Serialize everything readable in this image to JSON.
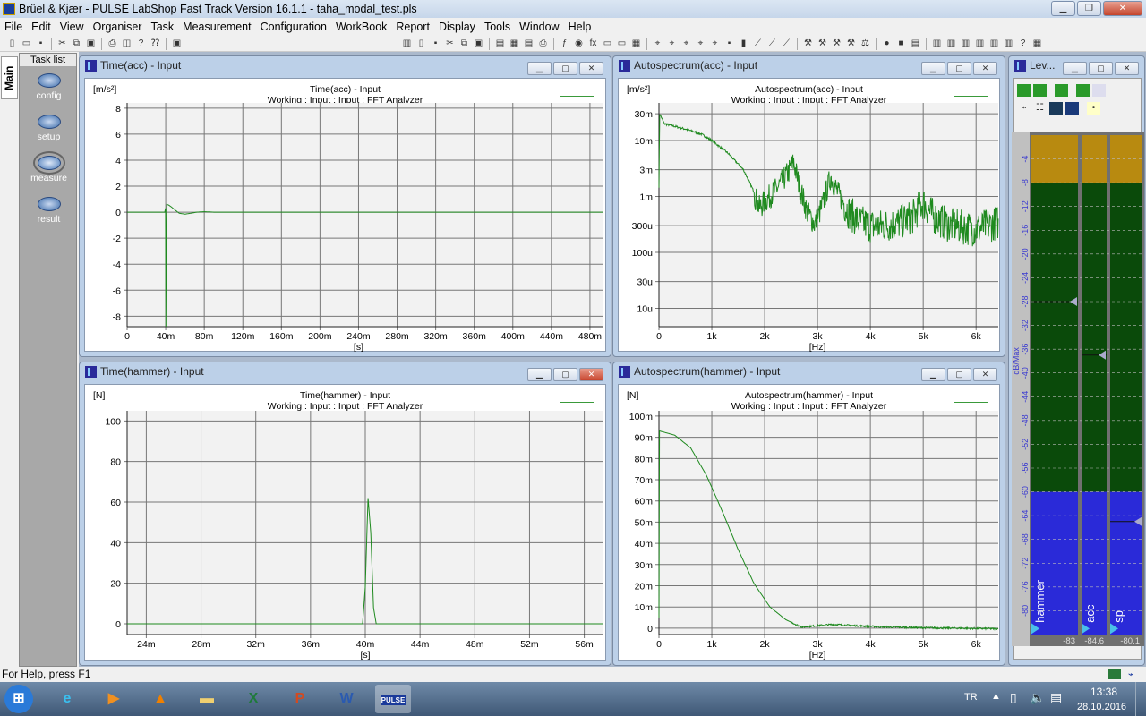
{
  "window": {
    "title": "Brüel & Kjær - PULSE LabShop Fast Track Version 16.1.1 - taha_modal_test.pls",
    "controls": [
      "minimize",
      "restore",
      "close"
    ]
  },
  "menu": [
    "File",
    "Edit",
    "View",
    "Organiser",
    "Task",
    "Measurement",
    "Configuration",
    "WorkBook",
    "Report",
    "Display",
    "Tools",
    "Window",
    "Help"
  ],
  "toolbar": [
    "new-icon",
    "open-icon",
    "save-icon",
    "|",
    "cut-icon",
    "copy-icon",
    "paste-icon",
    "|",
    "print-icon",
    "print-preview-icon",
    "help-icon",
    "context-help-icon",
    "|",
    "pulse-icon",
    "gap",
    "book-icon",
    "page-icon",
    "save-icon",
    "cut-icon",
    "copy-icon",
    "paste-icon",
    "|",
    "doc-icon",
    "grid-icon",
    "chart-icon",
    "print-icon",
    "|",
    "function-icon",
    "globe-icon",
    "fx-icon",
    "display-icon",
    "meter-icon",
    "table-icon",
    "|",
    "cursor-icon",
    "cursor-icon",
    "cursor-icon",
    "cursor-icon",
    "cursor-icon",
    "save-icon",
    "bar-icon",
    "plot-icon",
    "plot-icon",
    "plot-icon",
    "|",
    "tool-icon",
    "tool-icon",
    "tool-icon",
    "tool-icon",
    "scale-icon",
    "|",
    "record-icon",
    "stop-icon",
    "pdf-icon",
    "|",
    "layout-icon",
    "layout-icon",
    "layout-icon",
    "layout-icon",
    "layout-icon",
    "layout-icon",
    "help-icon",
    "grid-icon"
  ],
  "sidebar": {
    "tab": "Main",
    "task_list_label": "Task list",
    "tasks": [
      {
        "label": "config"
      },
      {
        "label": "setup"
      },
      {
        "label": "measure",
        "selected": true
      },
      {
        "label": "result"
      }
    ]
  },
  "status": "For Help, press F1",
  "panels": {
    "time_acc": {
      "caption": "Time(acc) - Input",
      "unit": "[m/s²]",
      "title": "Time(acc) - Input",
      "subtitle": "Working : Input : Input : FFT Analyzer",
      "xunit": "[s]"
    },
    "spec_acc": {
      "caption": "Autospectrum(acc) - Input",
      "unit": "[m/s²]",
      "title": "Autospectrum(acc) - Input",
      "subtitle": "Working : Input : Input : FFT Analyzer",
      "xunit": "[Hz]"
    },
    "time_hammer": {
      "caption": "Time(hammer) - Input",
      "unit": "[N]",
      "title": "Time(hammer) - Input",
      "subtitle": "Working : Input : Input : FFT Analyzer",
      "xunit": "[s]"
    },
    "spec_hammer": {
      "caption": "Autospectrum(hammer) - Input",
      "unit": "[N]",
      "title": "Autospectrum(hammer) - Input",
      "subtitle": "Working : Input : Input : FFT Analyzer",
      "xunit": "[Hz]"
    }
  },
  "chart_data": [
    {
      "id": "time_acc",
      "type": "line",
      "xlim": [
        0,
        0.494
      ],
      "ylim": [
        -8.8,
        8.4
      ],
      "yscale": "linear",
      "grid": true,
      "color": "#1f8a1f",
      "xticks": [
        [
          0,
          "0"
        ],
        [
          0.04,
          "40m"
        ],
        [
          0.08,
          "80m"
        ],
        [
          0.12,
          "120m"
        ],
        [
          0.16,
          "160m"
        ],
        [
          0.2,
          "200m"
        ],
        [
          0.24,
          "240m"
        ],
        [
          0.28,
          "280m"
        ],
        [
          0.32,
          "320m"
        ],
        [
          0.36,
          "360m"
        ],
        [
          0.4,
          "400m"
        ],
        [
          0.44,
          "440m"
        ],
        [
          0.48,
          "480m"
        ]
      ],
      "yticks": [
        [
          8,
          "8"
        ],
        [
          6,
          "6"
        ],
        [
          4,
          "4"
        ],
        [
          2,
          "2"
        ],
        [
          0,
          "0"
        ],
        [
          -2,
          "-2"
        ],
        [
          -4,
          "-4"
        ],
        [
          -6,
          "-6"
        ],
        [
          -8,
          "-8"
        ]
      ],
      "points": [
        [
          0,
          0
        ],
        [
          0.039,
          0
        ],
        [
          0.0398,
          0.3
        ],
        [
          0.0402,
          -8.8
        ],
        [
          0.0406,
          -2.8
        ],
        [
          0.041,
          0.6
        ],
        [
          0.043,
          0.55
        ],
        [
          0.046,
          0.4
        ],
        [
          0.05,
          0.15
        ],
        [
          0.054,
          -0.08
        ],
        [
          0.06,
          -0.15
        ],
        [
          0.066,
          -0.08
        ],
        [
          0.072,
          0
        ],
        [
          0.08,
          0.04
        ],
        [
          0.09,
          0
        ],
        [
          0.494,
          0
        ]
      ]
    },
    {
      "id": "spec_acc",
      "type": "line",
      "xlim": [
        0,
        6420
      ],
      "ylim": [
        4.7e-06,
        0.047
      ],
      "yscale": "log",
      "grid": true,
      "color": "#1f8a1f",
      "xticks": [
        [
          0,
          "0"
        ],
        [
          1000,
          "1k"
        ],
        [
          2000,
          "2k"
        ],
        [
          3000,
          "3k"
        ],
        [
          4000,
          "4k"
        ],
        [
          5000,
          "5k"
        ],
        [
          6000,
          "6k"
        ]
      ],
      "yticks": [
        [
          0.03,
          "30m"
        ],
        [
          0.01,
          "10m"
        ],
        [
          0.003,
          "3m"
        ],
        [
          0.001,
          "1m"
        ],
        [
          0.0003,
          "300u"
        ],
        [
          0.0001,
          "100u"
        ],
        [
          3e-05,
          "30u"
        ],
        [
          1e-05,
          "10u"
        ]
      ],
      "points": [
        [
          0,
          0.0015
        ],
        [
          15,
          0.03
        ],
        [
          100,
          0.02
        ],
        [
          500,
          0.016
        ],
        [
          800,
          0.013
        ],
        [
          1000,
          0.01
        ],
        [
          1300,
          0.006
        ],
        [
          1600,
          0.003
        ],
        [
          1800,
          0.0012
        ],
        [
          1900,
          0.0007
        ],
        [
          2050,
          0.001
        ],
        [
          2250,
          0.0016
        ],
        [
          2450,
          0.003
        ],
        [
          2550,
          0.0045
        ],
        [
          2650,
          0.0018
        ],
        [
          2800,
          0.0006
        ],
        [
          2950,
          0.00035
        ],
        [
          3100,
          0.0008
        ],
        [
          3250,
          0.0025
        ],
        [
          3400,
          0.0012
        ],
        [
          3600,
          0.0006
        ],
        [
          3800,
          0.0004
        ],
        [
          4100,
          0.00033
        ],
        [
          4500,
          0.00038
        ],
        [
          4800,
          0.0005
        ],
        [
          5000,
          0.0009
        ],
        [
          5200,
          0.0005
        ],
        [
          5500,
          0.00035
        ],
        [
          6000,
          0.0003
        ],
        [
          6420,
          0.0004
        ]
      ]
    },
    {
      "id": "time_hammer",
      "type": "line",
      "xlim": [
        0.0226,
        0.0574
      ],
      "ylim": [
        -5.3,
        105
      ],
      "yscale": "linear",
      "grid": true,
      "color": "#1f8a1f",
      "xticks": [
        [
          0.024,
          "24m"
        ],
        [
          0.028,
          "28m"
        ],
        [
          0.032,
          "32m"
        ],
        [
          0.036,
          "36m"
        ],
        [
          0.04,
          "40m"
        ],
        [
          0.044,
          "44m"
        ],
        [
          0.048,
          "48m"
        ],
        [
          0.052,
          "52m"
        ],
        [
          0.056,
          "56m"
        ]
      ],
      "yticks": [
        [
          100,
          "100"
        ],
        [
          80,
          "80"
        ],
        [
          60,
          "60"
        ],
        [
          40,
          "40"
        ],
        [
          20,
          "20"
        ],
        [
          0,
          "0"
        ]
      ],
      "points": [
        [
          0.0226,
          0
        ],
        [
          0.0398,
          0
        ],
        [
          0.04,
          18
        ],
        [
          0.0402,
          62
        ],
        [
          0.0404,
          45
        ],
        [
          0.0406,
          8
        ],
        [
          0.0408,
          0
        ],
        [
          0.0574,
          0
        ]
      ]
    },
    {
      "id": "spec_hammer",
      "type": "line",
      "xlim": [
        0,
        6420
      ],
      "ylim": [
        -0.003,
        0.1025
      ],
      "yscale": "linear",
      "grid": true,
      "color": "#1f8a1f",
      "xticks": [
        [
          0,
          "0"
        ],
        [
          1000,
          "1k"
        ],
        [
          2000,
          "2k"
        ],
        [
          3000,
          "3k"
        ],
        [
          4000,
          "4k"
        ],
        [
          5000,
          "5k"
        ],
        [
          6000,
          "6k"
        ]
      ],
      "yticks": [
        [
          0.1,
          "100m"
        ],
        [
          0.09,
          "90m"
        ],
        [
          0.08,
          "80m"
        ],
        [
          0.07,
          "70m"
        ],
        [
          0.06,
          "60m"
        ],
        [
          0.05,
          "50m"
        ],
        [
          0.04,
          "40m"
        ],
        [
          0.03,
          "30m"
        ],
        [
          0.02,
          "20m"
        ],
        [
          0.01,
          "10m"
        ],
        [
          0,
          "0"
        ]
      ],
      "points": [
        [
          0,
          0.005
        ],
        [
          10,
          0.093
        ],
        [
          300,
          0.091
        ],
        [
          600,
          0.085
        ],
        [
          900,
          0.072
        ],
        [
          1200,
          0.055
        ],
        [
          1500,
          0.037
        ],
        [
          1800,
          0.021
        ],
        [
          2100,
          0.01
        ],
        [
          2400,
          0.004
        ],
        [
          2700,
          0.0005
        ],
        [
          3000,
          0.0012
        ],
        [
          3300,
          0.0018
        ],
        [
          3700,
          0.0012
        ],
        [
          4200,
          0.0006
        ],
        [
          5000,
          0.0002
        ],
        [
          6420,
          -0.0003
        ]
      ]
    }
  ],
  "level_meter": {
    "caption": "Lev...",
    "scale_label": "dB/Max",
    "scale": [
      "-4",
      "-8",
      "-12",
      "-16",
      "-20",
      "-24",
      "-28",
      "-32",
      "-36",
      "-40",
      "-44",
      "-48",
      "-52",
      "-56",
      "-60",
      "-64",
      "-68",
      "-72",
      "-76",
      "-80"
    ],
    "channels": [
      {
        "name": "hammer",
        "value": "-83",
        "peak_db": -28
      },
      {
        "name": "acc",
        "value": "-84.6",
        "peak_db": -37
      },
      {
        "name": "sp",
        "value": "-80.1",
        "peak_db": -65
      }
    ],
    "colors": {
      "overload": "#b88a10",
      "normal": "#0a4a0a",
      "low": "#2a2ad8"
    }
  },
  "taskbar": {
    "apps": [
      "start",
      "internet-explorer",
      "media-player",
      "vlc",
      "explorer",
      "excel",
      "powerpoint",
      "word",
      "pulse"
    ],
    "active": "pulse",
    "pulse_label": "PULSE",
    "lang": "TR",
    "time": "13:38",
    "date": "28.10.2016"
  }
}
